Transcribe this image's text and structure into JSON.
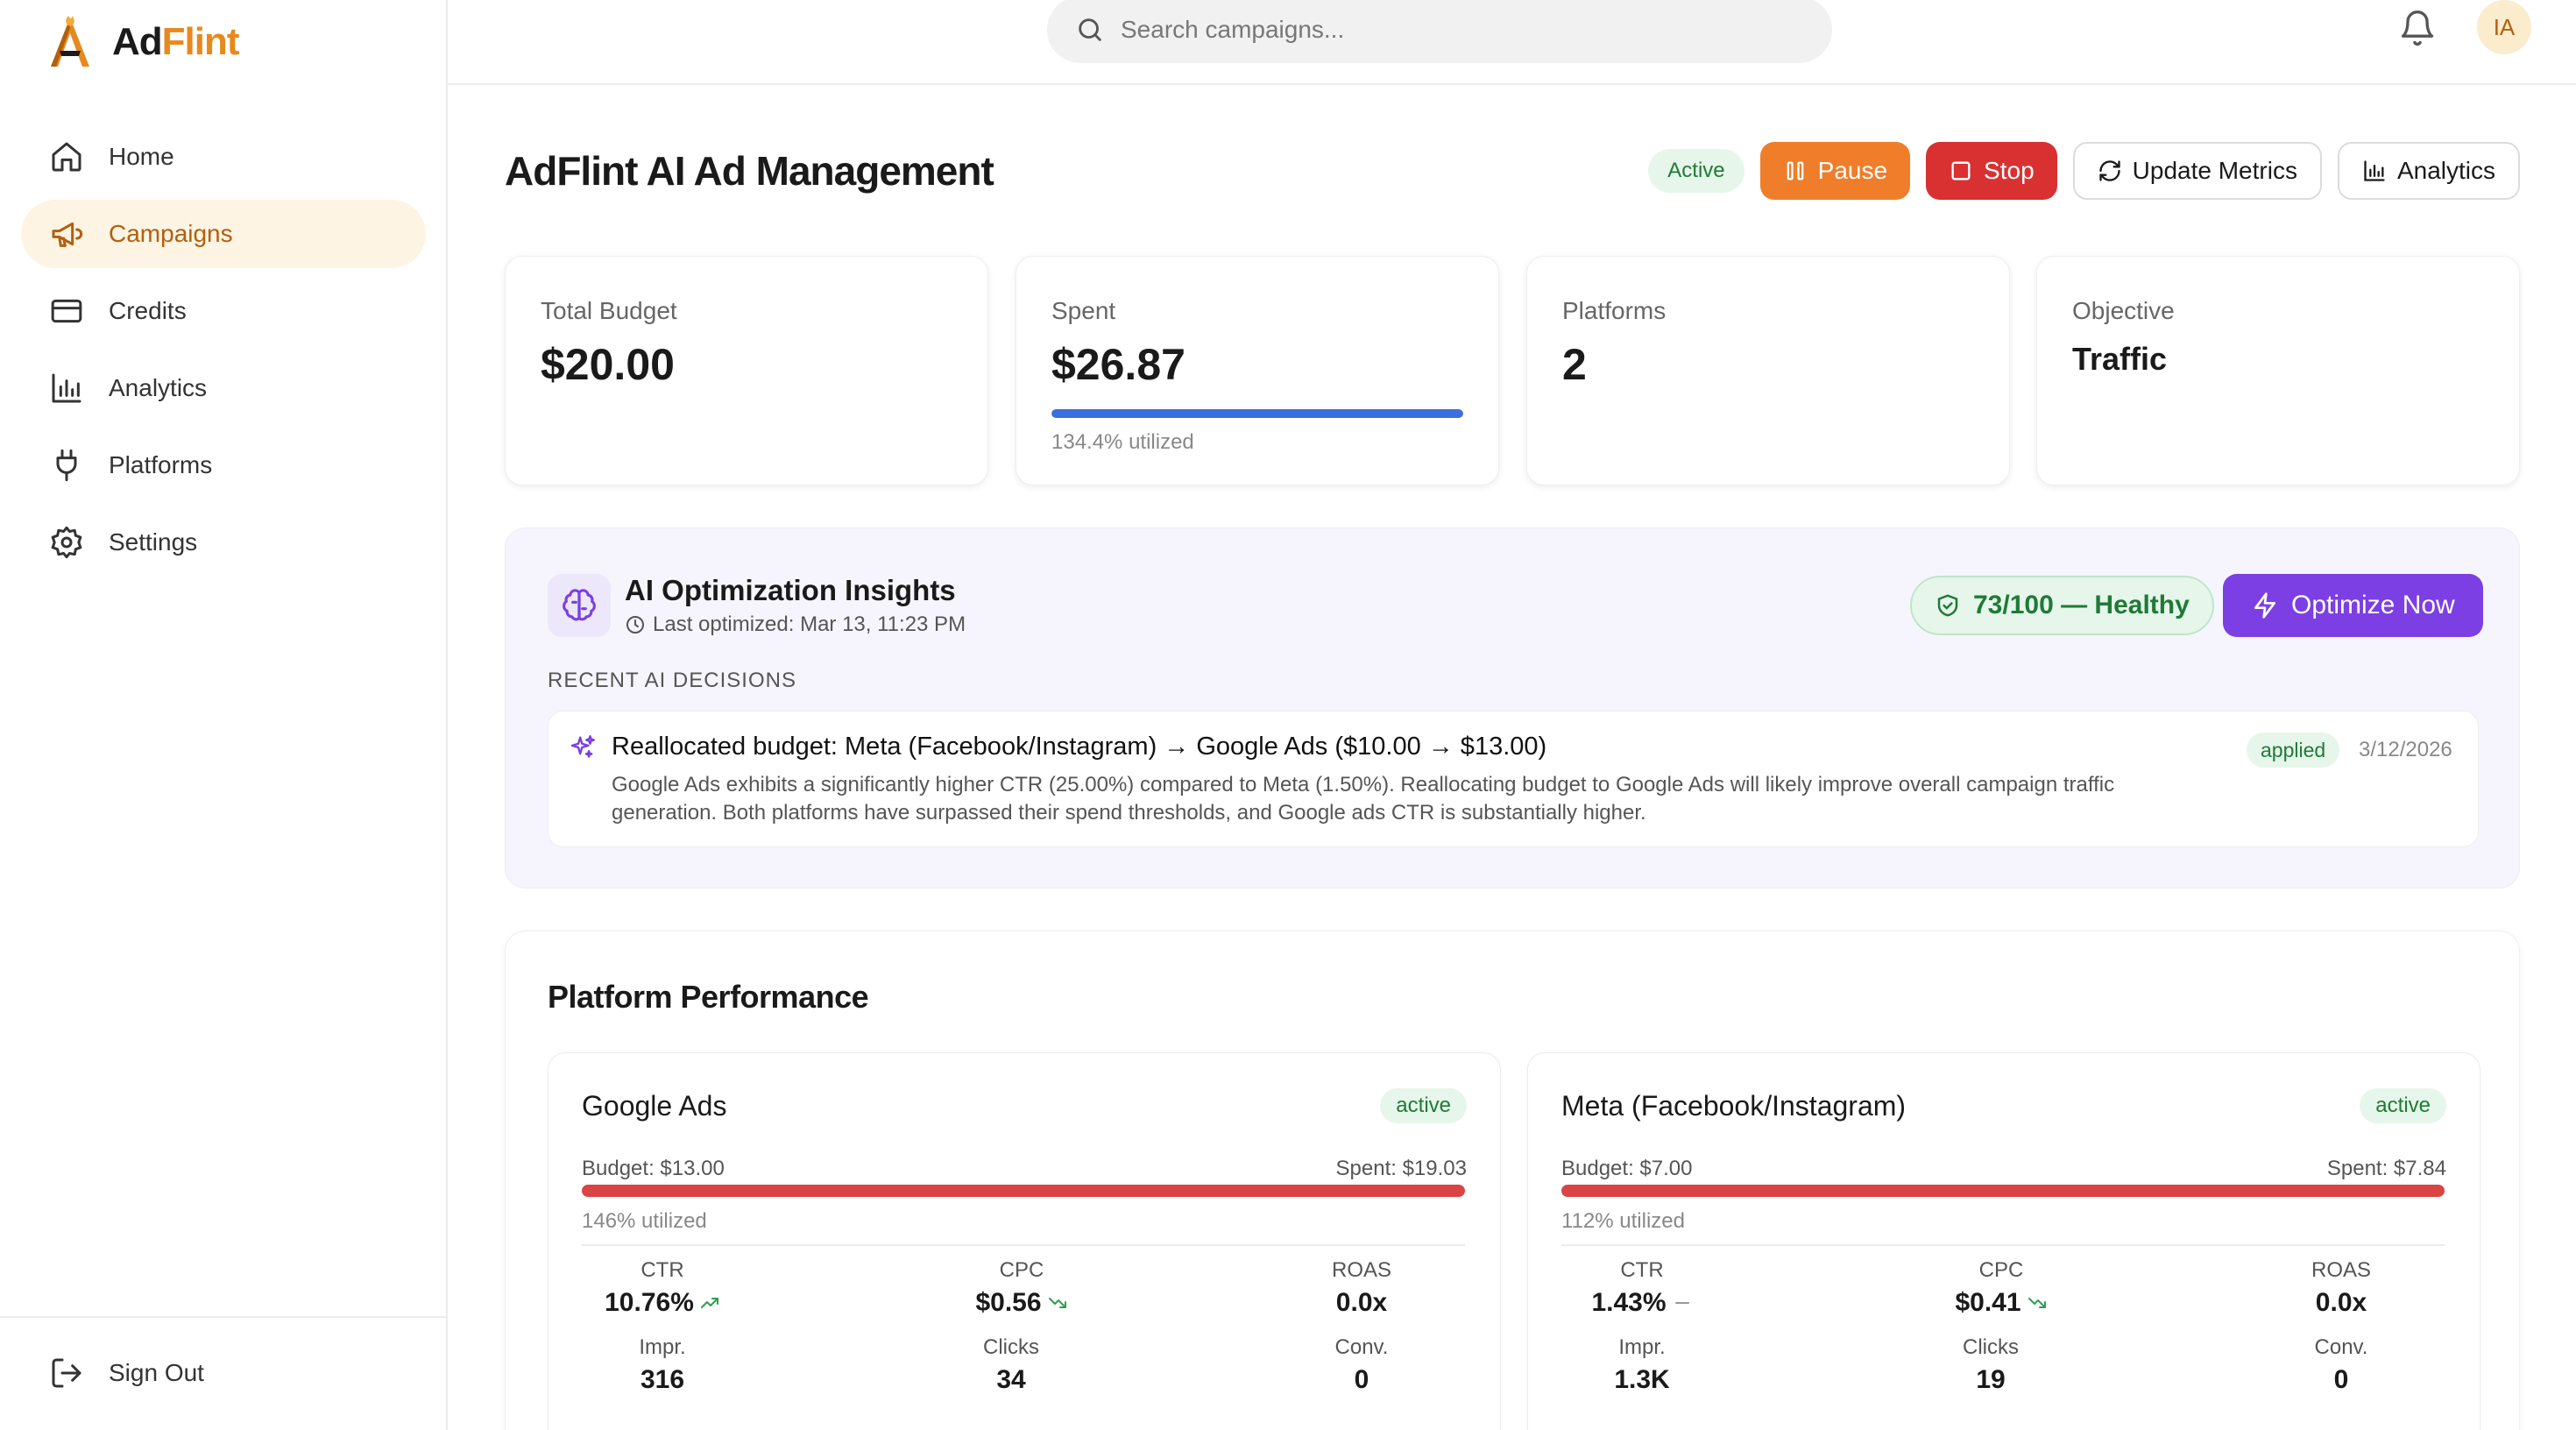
{
  "app": {
    "logo_ad": "Ad",
    "logo_flint": "Flint"
  },
  "sidebar": {
    "items": [
      {
        "label": "Home",
        "icon": "home-icon"
      },
      {
        "label": "Campaigns",
        "icon": "megaphone-icon",
        "active": true
      },
      {
        "label": "Credits",
        "icon": "credit-card-icon"
      },
      {
        "label": "Analytics",
        "icon": "bar-chart-icon"
      },
      {
        "label": "Platforms",
        "icon": "plug-icon"
      },
      {
        "label": "Settings",
        "icon": "gear-icon"
      }
    ],
    "sign_out": "Sign Out"
  },
  "header": {
    "search_placeholder": "Search campaigns...",
    "avatar_initials": "IA"
  },
  "campaign": {
    "title": "AdFlint AI Ad Management",
    "status": "Active",
    "actions": {
      "pause": "Pause",
      "stop": "Stop",
      "update_metrics": "Update Metrics",
      "analytics": "Analytics"
    }
  },
  "stats": {
    "total_budget_label": "Total Budget",
    "total_budget_value": "$20.00",
    "spent_label": "Spent",
    "spent_value": "$26.87",
    "spent_progress": 1.0,
    "spent_utilized": "134.4% utilized",
    "platforms_label": "Platforms",
    "platforms_value": "2",
    "objective_label": "Objective",
    "objective_value": "Traffic"
  },
  "ai_insights": {
    "title": "AI Optimization Insights",
    "last_optimized": "Last optimized: Mar 13, 11:23 PM",
    "health_score": "73/100 — Healthy",
    "optimize_button": "Optimize Now",
    "recent_label": "RECENT AI DECISIONS",
    "decisions": [
      {
        "title": "Reallocated budget: Meta (Facebook/Instagram) → Google Ads ($10.00 → $13.00)",
        "body": "Google Ads exhibits a significantly higher CTR (25.00%) compared to Meta (1.50%). Reallocating budget to Google Ads will likely improve overall campaign traffic generation. Both platforms have surpassed their spend thresholds, and Google ads CTR is substantially higher.",
        "status": "applied",
        "date": "3/12/2026"
      }
    ]
  },
  "performance": {
    "title": "Platform Performance",
    "platforms": [
      {
        "name": "Google Ads",
        "status": "active",
        "budget": "Budget: $13.00",
        "spent": "Spent: $19.03",
        "progress": 1.0,
        "utilized": "146% utilized",
        "metrics": {
          "ctr_label": "CTR",
          "ctr": "10.76%",
          "ctr_trend": "up",
          "cpc_label": "CPC",
          "cpc": "$0.56",
          "cpc_trend": "down",
          "roas_label": "ROAS",
          "roas": "0.0x",
          "impr_label": "Impr.",
          "impr": "316",
          "clicks_label": "Clicks",
          "clicks": "34",
          "conv_label": "Conv.",
          "conv": "0"
        }
      },
      {
        "name": "Meta (Facebook/Instagram)",
        "status": "active",
        "budget": "Budget: $7.00",
        "spent": "Spent: $7.84",
        "progress": 1.0,
        "utilized": "112% utilized",
        "metrics": {
          "ctr_label": "CTR",
          "ctr": "1.43%",
          "ctr_trend": "flat",
          "cpc_label": "CPC",
          "cpc": "$0.41",
          "cpc_trend": "down",
          "roas_label": "ROAS",
          "roas": "0.0x",
          "impr_label": "Impr.",
          "impr": "1.3K",
          "clicks_label": "Clicks",
          "clicks": "19",
          "conv_label": "Conv.",
          "conv": "0"
        }
      }
    ]
  },
  "colors": {
    "brand_orange": "#e8891d",
    "pause": "#ef7d2a",
    "stop": "#d93131",
    "optimize": "#7b3fe4",
    "progress_blue": "#3b6fe0",
    "over_budget_red": "#d94444",
    "success_green": "#1f7a37"
  }
}
